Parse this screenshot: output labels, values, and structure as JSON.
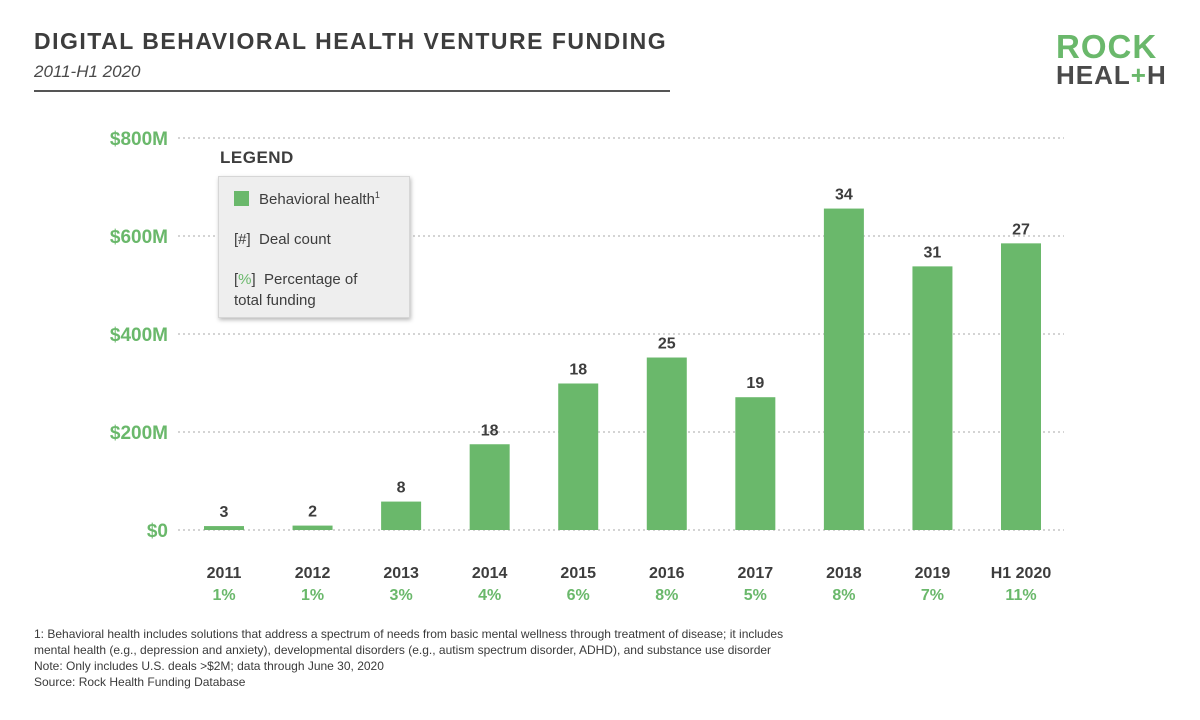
{
  "title": "DIGITAL BEHAVIORAL HEALTH VENTURE FUNDING",
  "subtitle": "2011-H1 2020",
  "logo": {
    "line1": "ROCK",
    "line2_a": "HEAL",
    "line2_plus": "+",
    "line2_b": "H"
  },
  "legend": {
    "heading": "LEGEND",
    "behavioral": "Behavioral  health",
    "behavioral_sup": "1",
    "deal_mark": "[#]",
    "deal_label": "Deal count",
    "pct_open": "[",
    "pct_mark": "%",
    "pct_close": "]",
    "pct_label_1": "Percentage of",
    "pct_label_2": "total funding"
  },
  "chart_data": {
    "type": "bar",
    "categories": [
      "2011",
      "2012",
      "2013",
      "2014",
      "2015",
      "2016",
      "2017",
      "2018",
      "2019",
      "H1 2020"
    ],
    "values": [
      8,
      9,
      58,
      175,
      299,
      352,
      271,
      656,
      538,
      585
    ],
    "deal_counts": [
      "3",
      "2",
      "8",
      "18",
      "18",
      "25",
      "19",
      "34",
      "31",
      "27"
    ],
    "percent_of_total": [
      "1%",
      "1%",
      "3%",
      "4%",
      "6%",
      "8%",
      "5%",
      "8%",
      "7%",
      "11%"
    ],
    "ylim": [
      0,
      800
    ],
    "y_ticks": [
      0,
      200,
      400,
      600,
      800
    ],
    "y_tick_labels": [
      "$0",
      "$200M",
      "$400M",
      "$600M",
      "$800M"
    ],
    "grid": true,
    "legend_position": "top-left",
    "colors": {
      "bar": "#6ab86b",
      "accent_text": "#6ab86b",
      "text": "#3d3d3d",
      "grid": "#a8a8a8"
    }
  },
  "footnotes": [
    "1: Behavioral health includes solutions that address a spectrum of needs from basic mental wellness through treatment of disease; it includes",
    "mental health (e.g., depression and anxiety), developmental disorders (e.g., autism spectrum disorder, ADHD), and substance use disorder",
    "Note: Only includes U.S. deals >$2M; data through June 30, 2020",
    "Source: Rock Health Funding Database"
  ]
}
